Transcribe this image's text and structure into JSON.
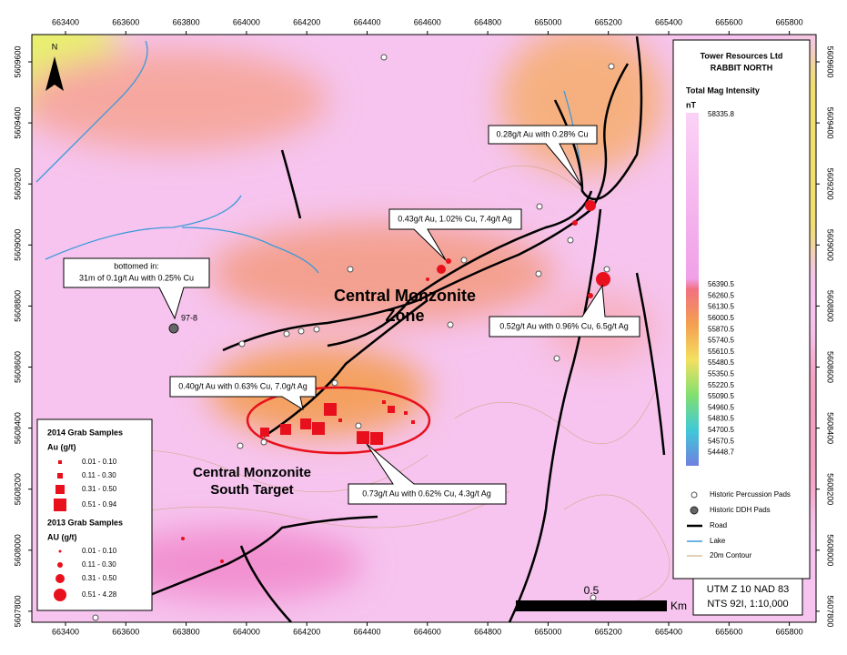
{
  "map": {
    "x_labels": [
      663400,
      663600,
      663800,
      664000,
      664200,
      664400,
      664600,
      664800,
      665000,
      665200,
      665400,
      665600,
      665800
    ],
    "y_labels": [
      5609600,
      5609400,
      5609200,
      5609000,
      5608800,
      5608600,
      5608400,
      5608200,
      5608000,
      5607800
    ],
    "north": "N",
    "drill_label": "97-8",
    "zone_label": [
      "Central Monzonite",
      "Zone"
    ],
    "south_label": [
      "Central Monzonite",
      "South Target"
    ],
    "callouts": [
      "0.28g/t Au with 0.28% Cu",
      "0.43g/t Au, 1.02% Cu, 7.4g/t Ag",
      [
        "bottomed in:",
        "31m of 0.1g/t Au with 0.25% Cu"
      ],
      "0.52g/t Au with 0.96% Cu, 6.5g/t Ag",
      "0.40g/t Au with 0.63% Cu, 7.0g/t Ag",
      "0.73g/t Au with 0.62% Cu, 4.3g/t Ag"
    ]
  },
  "legend": {
    "title": [
      "Tower Resources Ltd",
      "RABBIT NORTH"
    ],
    "subtitle": "Total Mag Intensity",
    "unit": "nT",
    "scale": [
      "58335.8",
      "56390.5",
      "56260.5",
      "56130.5",
      "56000.5",
      "55870.5",
      "55740.5",
      "55610.5",
      "55480.5",
      "55350.5",
      "55220.5",
      "55090.5",
      "54960.5",
      "54830.5",
      "54700.5",
      "54570.5",
      "54448.7"
    ],
    "items": [
      "Historic Percussion Pads",
      "Historic DDH Pads",
      "Road",
      "Lake",
      "20m Contour"
    ]
  },
  "samples_legend": {
    "grab_2014": {
      "title": "2014 Grab Samples",
      "unit": "Au (g/t)",
      "ranges": [
        "0.01 - 0.10",
        "0.11 - 0.30",
        "0.31 - 0.50",
        "0.51 - 0.94"
      ]
    },
    "grab_2013": {
      "title": "2013 Grab Samples",
      "unit": "AU (g/t)",
      "ranges": [
        "0.01 - 0.10",
        "0.11 - 0.30",
        "0.31 - 0.50",
        "0.51 - 4.28"
      ]
    }
  },
  "utm": [
    "UTM Z 10 NAD 83",
    "NTS 92I, 1:10,000"
  ],
  "scale_bar": {
    "value": "0.5",
    "unit": "Km"
  }
}
